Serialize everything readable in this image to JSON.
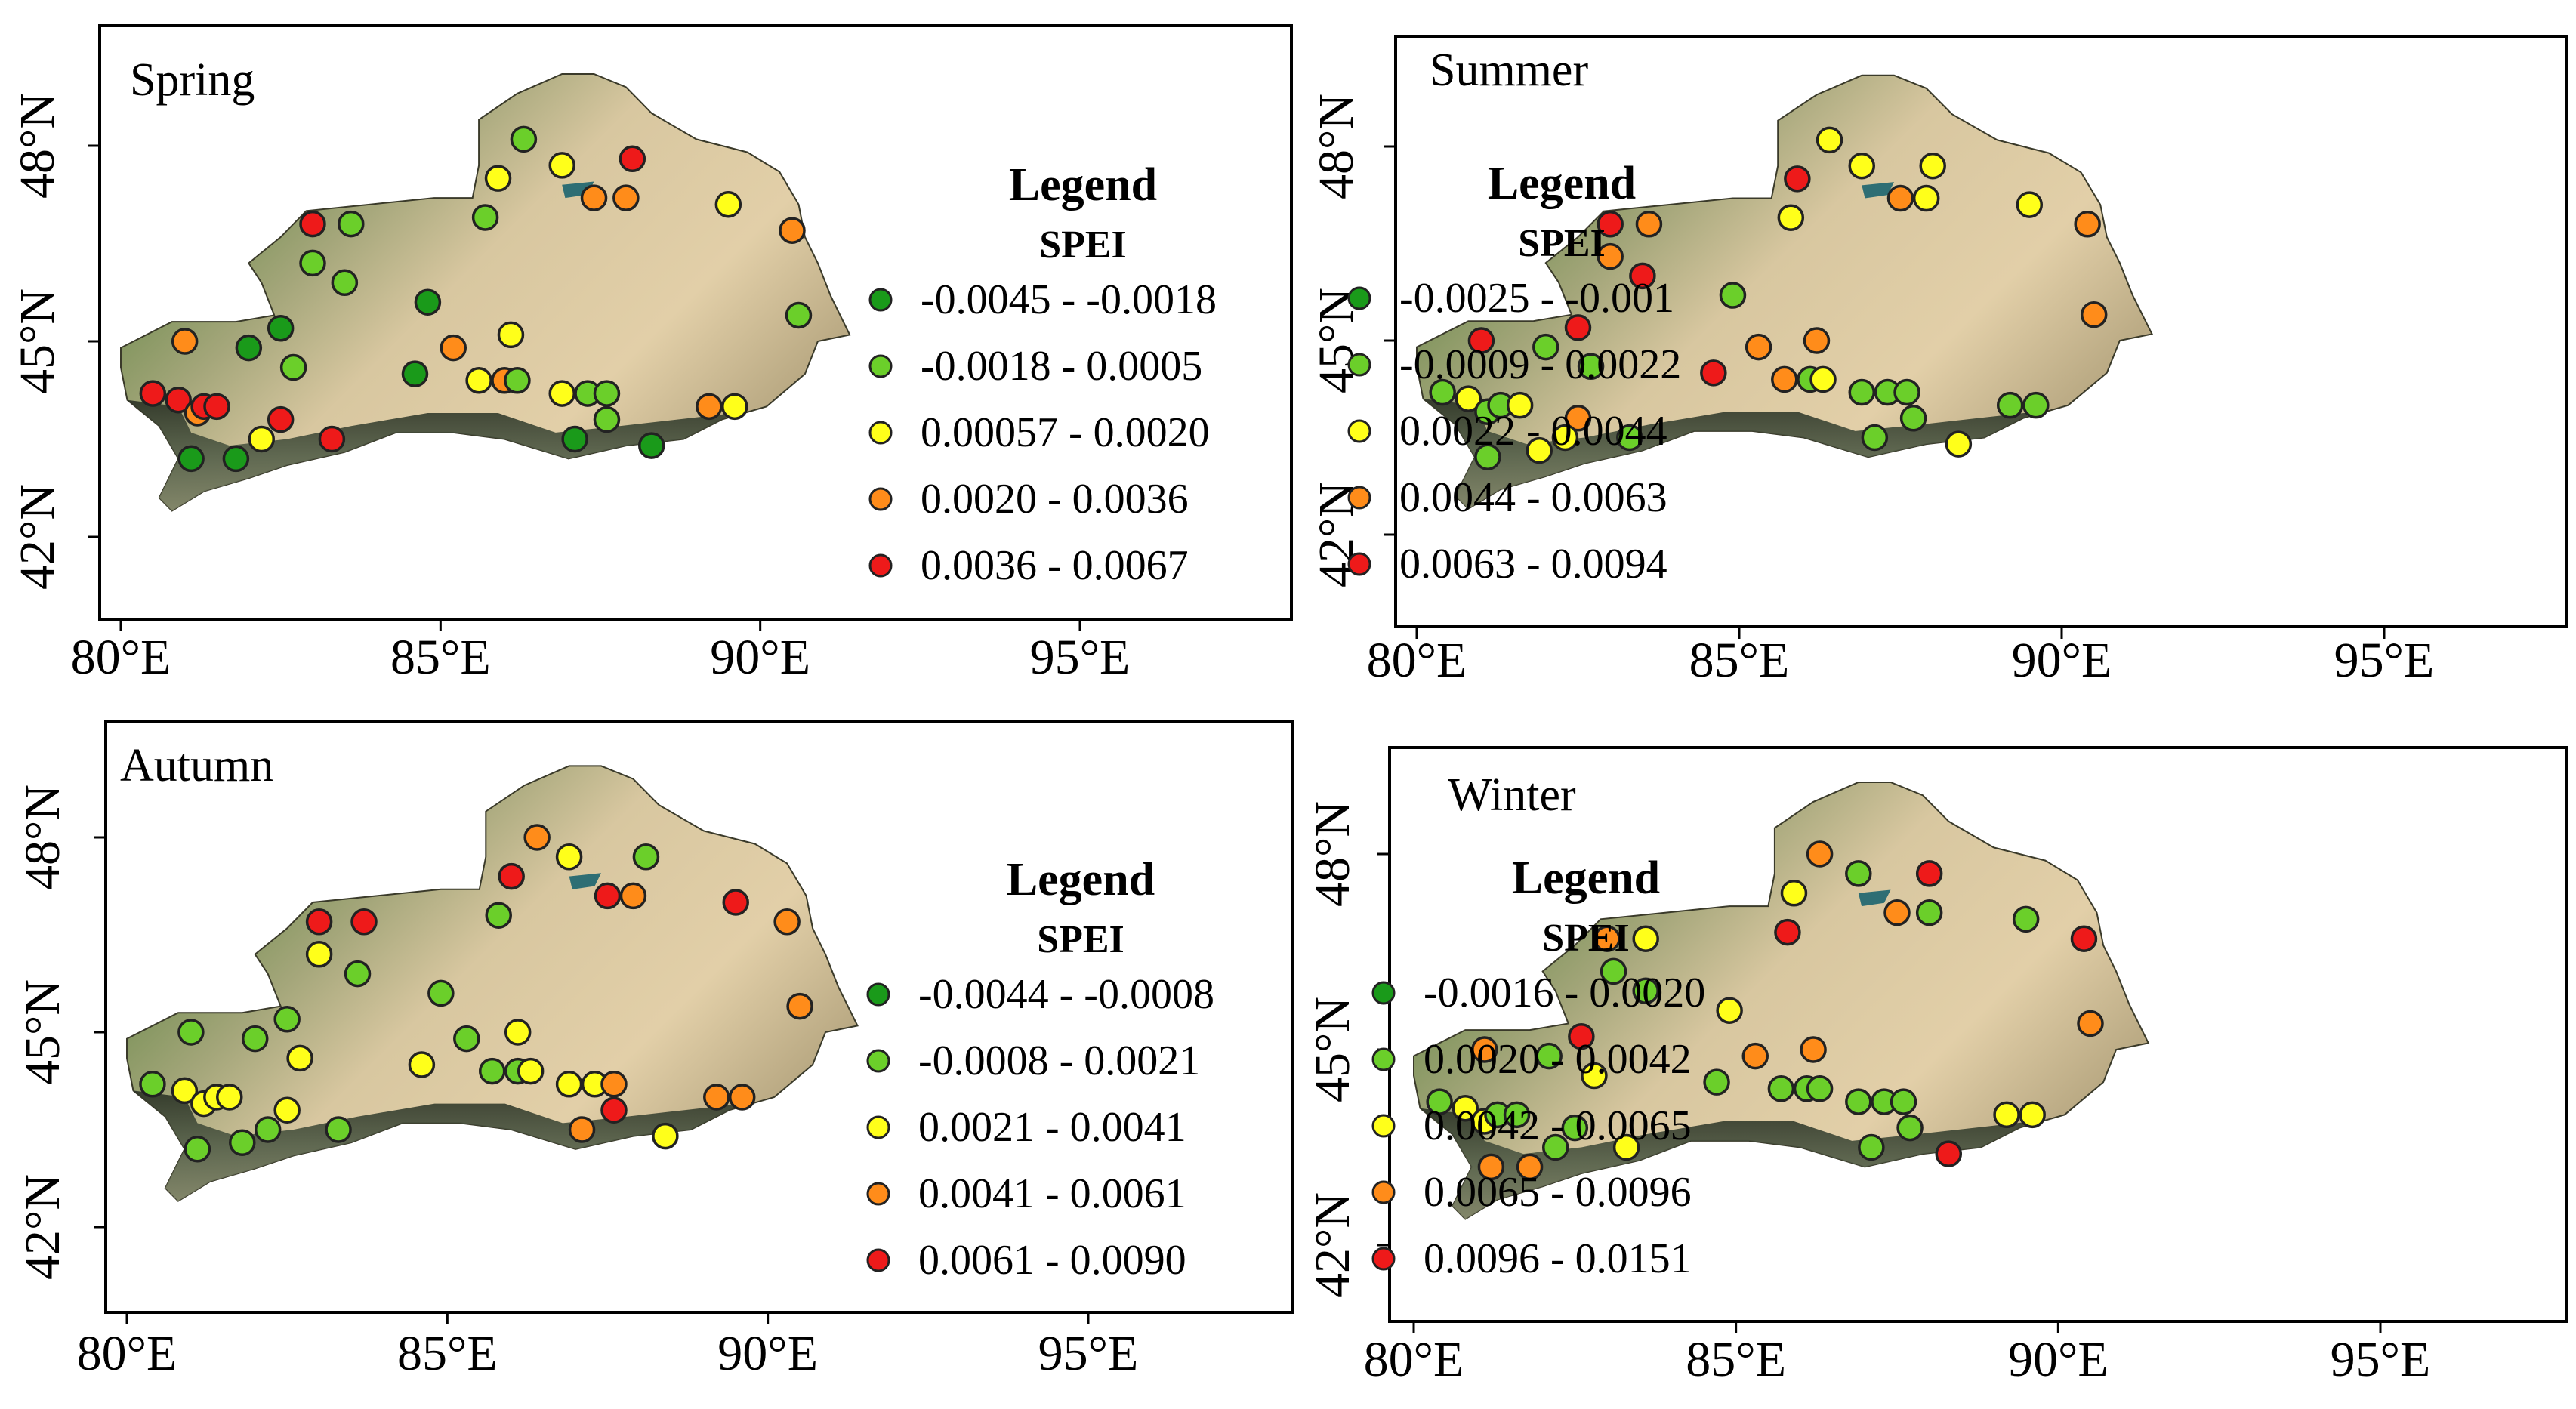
{
  "figure_title": "",
  "colors": {
    "class1": "#1a9a1a",
    "class2": "#6bcf2a",
    "class3": "#ffff1a",
    "class4": "#ff8c1a",
    "class5": "#ee1a1a",
    "marker_outline": "#222222",
    "panel_frame": "#000000"
  },
  "axes": {
    "x_ticks": [
      "80°E",
      "85°E",
      "90°E",
      "95°E"
    ],
    "y_ticks": [
      "42°N",
      "45°N",
      "48°N"
    ],
    "x_values": [
      80,
      85,
      90,
      95
    ],
    "y_values": [
      42,
      45,
      48
    ],
    "lon_range": [
      79.8,
      98.1
    ],
    "lat_range": [
      40.8,
      50.3
    ]
  },
  "chart_data": [
    {
      "type": "scatter",
      "title": "Spring",
      "legend_title": "Legend",
      "legend_subtitle": "SPEI",
      "classes": [
        "-0.0045 - -0.0018",
        "-0.0018 - 0.0005",
        "0.00057 - 0.0020",
        "0.0020 - 0.0036",
        "0.0036 - 0.0067"
      ],
      "stations": [
        {
          "lon": 86.3,
          "lat": 48.1,
          "cls": 2
        },
        {
          "lon": 85.9,
          "lat": 47.5,
          "cls": 3
        },
        {
          "lon": 86.9,
          "lat": 47.7,
          "cls": 3
        },
        {
          "lon": 88.0,
          "lat": 47.8,
          "cls": 5
        },
        {
          "lon": 87.4,
          "lat": 47.2,
          "cls": 4
        },
        {
          "lon": 87.9,
          "lat": 47.2,
          "cls": 4
        },
        {
          "lon": 89.5,
          "lat": 47.1,
          "cls": 3
        },
        {
          "lon": 90.5,
          "lat": 46.7,
          "cls": 4
        },
        {
          "lon": 85.7,
          "lat": 46.9,
          "cls": 2
        },
        {
          "lon": 83.0,
          "lat": 46.8,
          "cls": 5
        },
        {
          "lon": 83.6,
          "lat": 46.8,
          "cls": 2
        },
        {
          "lon": 83.0,
          "lat": 46.2,
          "cls": 2
        },
        {
          "lon": 83.5,
          "lat": 45.9,
          "cls": 2
        },
        {
          "lon": 84.8,
          "lat": 45.6,
          "cls": 1
        },
        {
          "lon": 90.6,
          "lat": 45.4,
          "cls": 2
        },
        {
          "lon": 82.5,
          "lat": 45.2,
          "cls": 1
        },
        {
          "lon": 82.0,
          "lat": 44.9,
          "cls": 1
        },
        {
          "lon": 81.0,
          "lat": 45.0,
          "cls": 4
        },
        {
          "lon": 85.2,
          "lat": 44.9,
          "cls": 4
        },
        {
          "lon": 86.1,
          "lat": 45.1,
          "cls": 3
        },
        {
          "lon": 82.7,
          "lat": 44.6,
          "cls": 2
        },
        {
          "lon": 84.6,
          "lat": 44.5,
          "cls": 1
        },
        {
          "lon": 85.6,
          "lat": 44.4,
          "cls": 3
        },
        {
          "lon": 86.0,
          "lat": 44.4,
          "cls": 4
        },
        {
          "lon": 86.2,
          "lat": 44.4,
          "cls": 2
        },
        {
          "lon": 86.9,
          "lat": 44.2,
          "cls": 3
        },
        {
          "lon": 87.3,
          "lat": 44.2,
          "cls": 2
        },
        {
          "lon": 87.6,
          "lat": 44.2,
          "cls": 2
        },
        {
          "lon": 89.2,
          "lat": 44.0,
          "cls": 4
        },
        {
          "lon": 89.6,
          "lat": 44.0,
          "cls": 3
        },
        {
          "lon": 87.6,
          "lat": 43.8,
          "cls": 2
        },
        {
          "lon": 87.1,
          "lat": 43.5,
          "cls": 1
        },
        {
          "lon": 88.3,
          "lat": 43.4,
          "cls": 1
        },
        {
          "lon": 80.5,
          "lat": 44.2,
          "cls": 5
        },
        {
          "lon": 80.9,
          "lat": 44.1,
          "cls": 5
        },
        {
          "lon": 81.2,
          "lat": 43.9,
          "cls": 4
        },
        {
          "lon": 81.3,
          "lat": 44.0,
          "cls": 5
        },
        {
          "lon": 81.5,
          "lat": 44.0,
          "cls": 5
        },
        {
          "lon": 82.5,
          "lat": 43.8,
          "cls": 5
        },
        {
          "lon": 82.2,
          "lat": 43.5,
          "cls": 3
        },
        {
          "lon": 83.3,
          "lat": 43.5,
          "cls": 5
        },
        {
          "lon": 81.1,
          "lat": 43.2,
          "cls": 1
        },
        {
          "lon": 81.8,
          "lat": 43.2,
          "cls": 1
        }
      ]
    },
    {
      "type": "scatter",
      "title": "Summer",
      "legend_title": "Legend",
      "legend_subtitle": "SPEI",
      "classes": [
        "-0.0025 - -0.001",
        "-0.0009 - 0.0022",
        "0.0022 - 0.0044",
        "0.0044 - 0.0063",
        "0.0063 - 0.0094"
      ],
      "stations": [
        {
          "lon": 86.4,
          "lat": 48.1,
          "cls": 3
        },
        {
          "lon": 85.9,
          "lat": 47.5,
          "cls": 5
        },
        {
          "lon": 86.9,
          "lat": 47.7,
          "cls": 3
        },
        {
          "lon": 88.0,
          "lat": 47.7,
          "cls": 3
        },
        {
          "lon": 87.5,
          "lat": 47.2,
          "cls": 4
        },
        {
          "lon": 87.9,
          "lat": 47.2,
          "cls": 3
        },
        {
          "lon": 89.5,
          "lat": 47.1,
          "cls": 3
        },
        {
          "lon": 90.4,
          "lat": 46.8,
          "cls": 4
        },
        {
          "lon": 85.8,
          "lat": 46.9,
          "cls": 3
        },
        {
          "lon": 83.0,
          "lat": 46.8,
          "cls": 5
        },
        {
          "lon": 83.6,
          "lat": 46.8,
          "cls": 4
        },
        {
          "lon": 83.0,
          "lat": 46.3,
          "cls": 4
        },
        {
          "lon": 83.5,
          "lat": 46.0,
          "cls": 5
        },
        {
          "lon": 84.9,
          "lat": 45.7,
          "cls": 2
        },
        {
          "lon": 90.5,
          "lat": 45.4,
          "cls": 4
        },
        {
          "lon": 82.5,
          "lat": 45.2,
          "cls": 5
        },
        {
          "lon": 82.0,
          "lat": 44.9,
          "cls": 2
        },
        {
          "lon": 81.0,
          "lat": 45.0,
          "cls": 5
        },
        {
          "lon": 85.3,
          "lat": 44.9,
          "cls": 4
        },
        {
          "lon": 86.2,
          "lat": 45.0,
          "cls": 4
        },
        {
          "lon": 82.7,
          "lat": 44.6,
          "cls": 2
        },
        {
          "lon": 84.6,
          "lat": 44.5,
          "cls": 5
        },
        {
          "lon": 85.7,
          "lat": 44.4,
          "cls": 4
        },
        {
          "lon": 86.1,
          "lat": 44.4,
          "cls": 2
        },
        {
          "lon": 86.3,
          "lat": 44.4,
          "cls": 3
        },
        {
          "lon": 86.9,
          "lat": 44.2,
          "cls": 2
        },
        {
          "lon": 87.3,
          "lat": 44.2,
          "cls": 2
        },
        {
          "lon": 87.6,
          "lat": 44.2,
          "cls": 2
        },
        {
          "lon": 89.2,
          "lat": 44.0,
          "cls": 2
        },
        {
          "lon": 89.6,
          "lat": 44.0,
          "cls": 2
        },
        {
          "lon": 87.7,
          "lat": 43.8,
          "cls": 2
        },
        {
          "lon": 87.1,
          "lat": 43.5,
          "cls": 2
        },
        {
          "lon": 88.4,
          "lat": 43.4,
          "cls": 3
        },
        {
          "lon": 80.4,
          "lat": 44.2,
          "cls": 2
        },
        {
          "lon": 80.8,
          "lat": 44.1,
          "cls": 3
        },
        {
          "lon": 81.1,
          "lat": 43.9,
          "cls": 2
        },
        {
          "lon": 81.3,
          "lat": 44.0,
          "cls": 2
        },
        {
          "lon": 81.6,
          "lat": 44.0,
          "cls": 3
        },
        {
          "lon": 82.5,
          "lat": 43.8,
          "cls": 4
        },
        {
          "lon": 82.3,
          "lat": 43.5,
          "cls": 3
        },
        {
          "lon": 83.3,
          "lat": 43.5,
          "cls": 2
        },
        {
          "lon": 81.1,
          "lat": 43.2,
          "cls": 2
        },
        {
          "lon": 81.9,
          "lat": 43.3,
          "cls": 3
        }
      ]
    },
    {
      "type": "scatter",
      "title": "Autumn",
      "legend_title": "Legend",
      "legend_subtitle": "SPEI",
      "classes": [
        "-0.0044 - -0.0008",
        "-0.0008 - 0.0021",
        "0.0021 - 0.0041",
        "0.0041 - 0.0061",
        "0.0061 - 0.0090"
      ],
      "stations": [
        {
          "lon": 86.4,
          "lat": 48.0,
          "cls": 4
        },
        {
          "lon": 86.0,
          "lat": 47.4,
          "cls": 5
        },
        {
          "lon": 86.9,
          "lat": 47.7,
          "cls": 3
        },
        {
          "lon": 88.1,
          "lat": 47.7,
          "cls": 2
        },
        {
          "lon": 87.5,
          "lat": 47.1,
          "cls": 5
        },
        {
          "lon": 87.9,
          "lat": 47.1,
          "cls": 4
        },
        {
          "lon": 89.5,
          "lat": 47.0,
          "cls": 5
        },
        {
          "lon": 90.3,
          "lat": 46.7,
          "cls": 4
        },
        {
          "lon": 85.8,
          "lat": 46.8,
          "cls": 2
        },
        {
          "lon": 83.0,
          "lat": 46.7,
          "cls": 5
        },
        {
          "lon": 83.7,
          "lat": 46.7,
          "cls": 5
        },
        {
          "lon": 83.0,
          "lat": 46.2,
          "cls": 3
        },
        {
          "lon": 83.6,
          "lat": 45.9,
          "cls": 2
        },
        {
          "lon": 84.9,
          "lat": 45.6,
          "cls": 2
        },
        {
          "lon": 90.5,
          "lat": 45.4,
          "cls": 4
        },
        {
          "lon": 82.5,
          "lat": 45.2,
          "cls": 2
        },
        {
          "lon": 82.0,
          "lat": 44.9,
          "cls": 2
        },
        {
          "lon": 81.0,
          "lat": 45.0,
          "cls": 2
        },
        {
          "lon": 85.3,
          "lat": 44.9,
          "cls": 2
        },
        {
          "lon": 86.1,
          "lat": 45.0,
          "cls": 3
        },
        {
          "lon": 82.7,
          "lat": 44.6,
          "cls": 3
        },
        {
          "lon": 84.6,
          "lat": 44.5,
          "cls": 3
        },
        {
          "lon": 85.7,
          "lat": 44.4,
          "cls": 2
        },
        {
          "lon": 86.1,
          "lat": 44.4,
          "cls": 2
        },
        {
          "lon": 86.3,
          "lat": 44.4,
          "cls": 3
        },
        {
          "lon": 86.9,
          "lat": 44.2,
          "cls": 3
        },
        {
          "lon": 87.3,
          "lat": 44.2,
          "cls": 3
        },
        {
          "lon": 87.6,
          "lat": 44.2,
          "cls": 4
        },
        {
          "lon": 89.2,
          "lat": 44.0,
          "cls": 4
        },
        {
          "lon": 89.6,
          "lat": 44.0,
          "cls": 4
        },
        {
          "lon": 87.6,
          "lat": 43.8,
          "cls": 5
        },
        {
          "lon": 87.1,
          "lat": 43.5,
          "cls": 4
        },
        {
          "lon": 88.4,
          "lat": 43.4,
          "cls": 3
        },
        {
          "lon": 80.4,
          "lat": 44.2,
          "cls": 2
        },
        {
          "lon": 80.9,
          "lat": 44.1,
          "cls": 3
        },
        {
          "lon": 81.2,
          "lat": 43.9,
          "cls": 3
        },
        {
          "lon": 81.4,
          "lat": 44.0,
          "cls": 3
        },
        {
          "lon": 81.6,
          "lat": 44.0,
          "cls": 3
        },
        {
          "lon": 82.5,
          "lat": 43.8,
          "cls": 3
        },
        {
          "lon": 82.2,
          "lat": 43.5,
          "cls": 2
        },
        {
          "lon": 83.3,
          "lat": 43.5,
          "cls": 2
        },
        {
          "lon": 81.1,
          "lat": 43.2,
          "cls": 2
        },
        {
          "lon": 81.8,
          "lat": 43.3,
          "cls": 2
        }
      ]
    },
    {
      "type": "scatter",
      "title": "Winter",
      "legend_title": "Legend",
      "legend_subtitle": "SPEI",
      "classes": [
        "-0.0016 - 0.0020",
        "0.0020 - 0.0042",
        "0.0042 - 0.0065",
        "0.0065 - 0.0096",
        "0.0096 - 0.0151"
      ],
      "stations": [
        {
          "lon": 86.3,
          "lat": 48.0,
          "cls": 4
        },
        {
          "lon": 85.9,
          "lat": 47.4,
          "cls": 3
        },
        {
          "lon": 86.9,
          "lat": 47.7,
          "cls": 2
        },
        {
          "lon": 88.0,
          "lat": 47.7,
          "cls": 5
        },
        {
          "lon": 87.5,
          "lat": 47.1,
          "cls": 4
        },
        {
          "lon": 88.0,
          "lat": 47.1,
          "cls": 2
        },
        {
          "lon": 89.5,
          "lat": 47.0,
          "cls": 2
        },
        {
          "lon": 90.4,
          "lat": 46.7,
          "cls": 5
        },
        {
          "lon": 85.8,
          "lat": 46.8,
          "cls": 5
        },
        {
          "lon": 83.0,
          "lat": 46.7,
          "cls": 4
        },
        {
          "lon": 83.6,
          "lat": 46.7,
          "cls": 3
        },
        {
          "lon": 83.1,
          "lat": 46.2,
          "cls": 2
        },
        {
          "lon": 83.6,
          "lat": 45.9,
          "cls": 2
        },
        {
          "lon": 84.9,
          "lat": 45.6,
          "cls": 3
        },
        {
          "lon": 90.5,
          "lat": 45.4,
          "cls": 4
        },
        {
          "lon": 82.6,
          "lat": 45.2,
          "cls": 5
        },
        {
          "lon": 82.1,
          "lat": 44.9,
          "cls": 2
        },
        {
          "lon": 81.1,
          "lat": 45.0,
          "cls": 4
        },
        {
          "lon": 85.3,
          "lat": 44.9,
          "cls": 4
        },
        {
          "lon": 86.2,
          "lat": 45.0,
          "cls": 4
        },
        {
          "lon": 82.8,
          "lat": 44.6,
          "cls": 3
        },
        {
          "lon": 84.7,
          "lat": 44.5,
          "cls": 2
        },
        {
          "lon": 85.7,
          "lat": 44.4,
          "cls": 2
        },
        {
          "lon": 86.1,
          "lat": 44.4,
          "cls": 2
        },
        {
          "lon": 86.3,
          "lat": 44.4,
          "cls": 2
        },
        {
          "lon": 86.9,
          "lat": 44.2,
          "cls": 2
        },
        {
          "lon": 87.3,
          "lat": 44.2,
          "cls": 2
        },
        {
          "lon": 87.6,
          "lat": 44.2,
          "cls": 2
        },
        {
          "lon": 89.2,
          "lat": 44.0,
          "cls": 3
        },
        {
          "lon": 89.6,
          "lat": 44.0,
          "cls": 3
        },
        {
          "lon": 87.7,
          "lat": 43.8,
          "cls": 2
        },
        {
          "lon": 87.1,
          "lat": 43.5,
          "cls": 2
        },
        {
          "lon": 88.3,
          "lat": 43.4,
          "cls": 5
        },
        {
          "lon": 80.4,
          "lat": 44.2,
          "cls": 2
        },
        {
          "lon": 80.8,
          "lat": 44.1,
          "cls": 3
        },
        {
          "lon": 81.1,
          "lat": 43.9,
          "cls": 3
        },
        {
          "lon": 81.3,
          "lat": 44.0,
          "cls": 2
        },
        {
          "lon": 81.6,
          "lat": 44.0,
          "cls": 2
        },
        {
          "lon": 82.5,
          "lat": 43.8,
          "cls": 2
        },
        {
          "lon": 82.2,
          "lat": 43.5,
          "cls": 2
        },
        {
          "lon": 83.3,
          "lat": 43.5,
          "cls": 3
        },
        {
          "lon": 81.2,
          "lat": 43.2,
          "cls": 4
        },
        {
          "lon": 81.8,
          "lat": 43.2,
          "cls": 4
        }
      ]
    }
  ]
}
